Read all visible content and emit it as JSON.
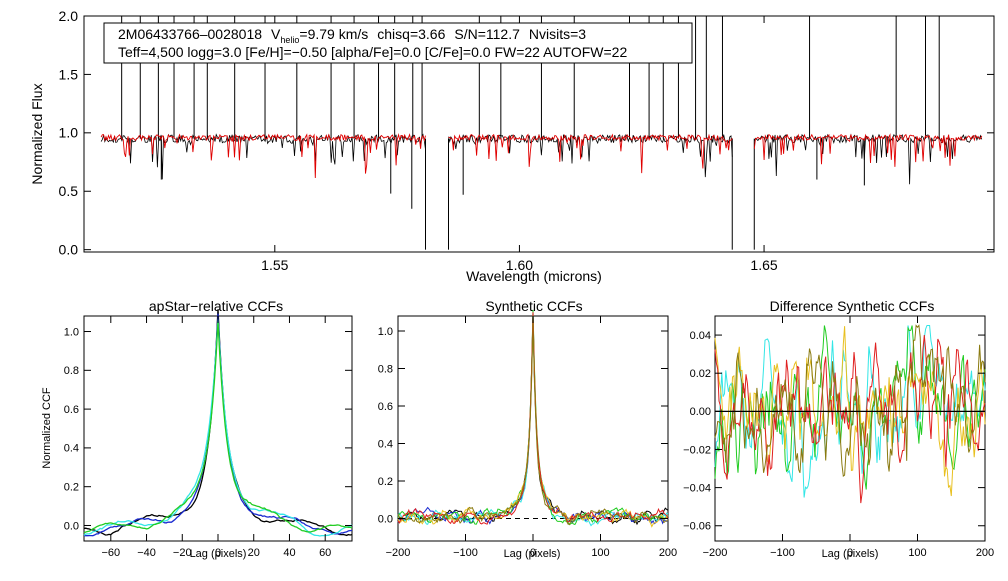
{
  "colors": {
    "observed": "#000000",
    "model": "#e00000",
    "ccf_black": "#000000",
    "ccf_blue": "#1a2ad0",
    "ccf_cyan": "#33e6e6",
    "ccf_green": "#22cc22",
    "ccf_yellow": "#e8c020",
    "ccf_red": "#e02020",
    "ccf_olive": "#8a7a10"
  },
  "chart_data": [
    {
      "id": "spectrum",
      "type": "line",
      "title": "",
      "xlabel": "Wavelength (microns)",
      "ylabel": "Normalized Flux",
      "xlim": [
        1.511,
        1.697
      ],
      "ylim": [
        -0.02,
        2.0
      ],
      "xticks": [
        {
          "value": 1.55,
          "label": "1.55"
        },
        {
          "value": 1.6,
          "label": "1.60"
        },
        {
          "value": 1.65,
          "label": "1.65"
        }
      ],
      "yticks": [
        {
          "value": 0.0,
          "label": "0.0"
        },
        {
          "value": 0.5,
          "label": "0.5"
        },
        {
          "value": 1.0,
          "label": "1.0"
        },
        {
          "value": 1.5,
          "label": "1.5"
        },
        {
          "value": 2.0,
          "label": "2.0"
        }
      ],
      "annotation": {
        "star_id": "2M06433766–0028018",
        "v_label": "V",
        "v_sub": "helio",
        "v_value": "=9.79 km/s",
        "chisq": "chisq=3.66",
        "sn": "S/N=112.7",
        "nvisits": "Nvisits=3",
        "params": "Teff=4,500 logg=3.0 [Fe/H]=−0.50 [alpha/Fe]=0.0 [C/Fe]=0.0 FW=22 AUTOFW=22"
      },
      "chips": [
        [
          1.5145,
          1.5808
        ],
        [
          1.5855,
          1.6435
        ],
        [
          1.648,
          1.6945
        ]
      ],
      "series": [
        {
          "name": "observed",
          "continuum": 0.95
        },
        {
          "name": "model",
          "continuum": 0.96
        }
      ],
      "spikes": [
        1.5187,
        1.5225,
        1.5262,
        1.5294,
        1.5335,
        1.5362,
        1.5418,
        1.548,
        1.5545,
        1.5615,
        1.5662,
        1.5712,
        1.5745,
        1.5782,
        1.5801,
        1.5918,
        1.5962,
        1.6045,
        1.6112,
        1.6225,
        1.6265,
        1.6294,
        1.6325,
        1.636,
        1.6382,
        1.6415,
        1.6593,
        1.677,
        1.683,
        1.6858
      ],
      "deep_lines": [
        {
          "x": 1.5808,
          "y": 0.0
        },
        {
          "x": 1.5855,
          "y": 0.0
        },
        {
          "x": 1.6435,
          "y": 0.0
        },
        {
          "x": 1.648,
          "y": 0.0
        },
        {
          "x": 1.578,
          "y": 0.35
        },
        {
          "x": 1.5268,
          "y": 0.6
        },
        {
          "x": 1.5885,
          "y": 0.47
        },
        {
          "x": 1.5737,
          "y": 0.48
        },
        {
          "x": 1.6608,
          "y": 0.6
        },
        {
          "x": 1.6705,
          "y": 0.55
        }
      ]
    },
    {
      "id": "ccf_apstar",
      "type": "line",
      "title": "apStar−relative CCFs",
      "xlabel": "Lag (pixels)",
      "ylabel": "Normalized CCF",
      "xlim": [
        -75,
        75
      ],
      "ylim": [
        -0.08,
        1.08
      ],
      "xticks": [
        {
          "value": -60,
          "label": "−60"
        },
        {
          "value": -40,
          "label": "−40"
        },
        {
          "value": -20,
          "label": "−20"
        },
        {
          "value": 0,
          "label": "0"
        },
        {
          "value": 20,
          "label": "20"
        },
        {
          "value": 40,
          "label": "40"
        },
        {
          "value": 60,
          "label": "60"
        }
      ],
      "yticks": [
        {
          "value": 0.0,
          "label": "0.0"
        },
        {
          "value": 0.2,
          "label": "0.2"
        },
        {
          "value": 0.4,
          "label": "0.4"
        },
        {
          "value": 0.6,
          "label": "0.6"
        },
        {
          "value": 0.8,
          "label": "0.8"
        },
        {
          "value": 1.0,
          "label": "1.0"
        }
      ],
      "series": [
        {
          "name": "black",
          "width": 4.8,
          "peak": 1.0,
          "seed": 1
        },
        {
          "name": "blue",
          "width": 5.0,
          "peak": 0.99,
          "seed": 2
        },
        {
          "name": "cyan",
          "width": 5.8,
          "peak": 0.96,
          "seed": 3
        },
        {
          "name": "green",
          "width": 5.2,
          "peak": 0.985,
          "seed": 4
        }
      ]
    },
    {
      "id": "ccf_synthetic",
      "type": "line",
      "title": "Synthetic CCFs",
      "xlabel": "Lag (pixels)",
      "ylabel": "",
      "xlim": [
        -200,
        200
      ],
      "ylim": [
        -0.12,
        1.08
      ],
      "xticks": [
        {
          "value": -200,
          "label": "−200"
        },
        {
          "value": -100,
          "label": "−100"
        },
        {
          "value": 0,
          "label": "0"
        },
        {
          "value": 100,
          "label": "100"
        },
        {
          "value": 200,
          "label": "200"
        }
      ],
      "yticks": [
        {
          "value": 0.0,
          "label": "0.0"
        },
        {
          "value": 0.2,
          "label": "0.2"
        },
        {
          "value": 0.4,
          "label": "0.4"
        },
        {
          "value": 0.6,
          "label": "0.6"
        },
        {
          "value": 0.8,
          "label": "0.8"
        },
        {
          "value": 1.0,
          "label": "1.0"
        }
      ],
      "baseline": 0.0,
      "series": [
        {
          "name": "black",
          "seed": 11
        },
        {
          "name": "blue",
          "seed": 12
        },
        {
          "name": "cyan",
          "seed": 13
        },
        {
          "name": "green",
          "seed": 14
        },
        {
          "name": "yellow",
          "seed": 15
        },
        {
          "name": "red",
          "seed": 16
        },
        {
          "name": "olive",
          "seed": 17
        }
      ]
    },
    {
      "id": "ccf_difference",
      "type": "line",
      "title": "Difference Synthetic CCFs",
      "xlabel": "Lag (pixels)",
      "ylabel": "",
      "xlim": [
        -200,
        200
      ],
      "ylim": [
        -0.068,
        0.05
      ],
      "xticks": [
        {
          "value": -200,
          "label": "−200"
        },
        {
          "value": -100,
          "label": "−100"
        },
        {
          "value": 0,
          "label": "0"
        },
        {
          "value": 100,
          "label": "100"
        },
        {
          "value": 200,
          "label": "200"
        }
      ],
      "yticks": [
        {
          "value": -0.06,
          "label": "−0.06"
        },
        {
          "value": -0.04,
          "label": "−0.04"
        },
        {
          "value": -0.02,
          "label": "−0.02"
        },
        {
          "value": 0.0,
          "label": "0.00"
        },
        {
          "value": 0.02,
          "label": "0.02"
        },
        {
          "value": 0.04,
          "label": "0.04"
        }
      ],
      "baseline": 0.0,
      "series": [
        {
          "name": "cyan",
          "seed": 21
        },
        {
          "name": "green",
          "seed": 22
        },
        {
          "name": "yellow",
          "seed": 23
        },
        {
          "name": "red",
          "seed": 24
        },
        {
          "name": "olive",
          "seed": 25
        }
      ]
    }
  ]
}
